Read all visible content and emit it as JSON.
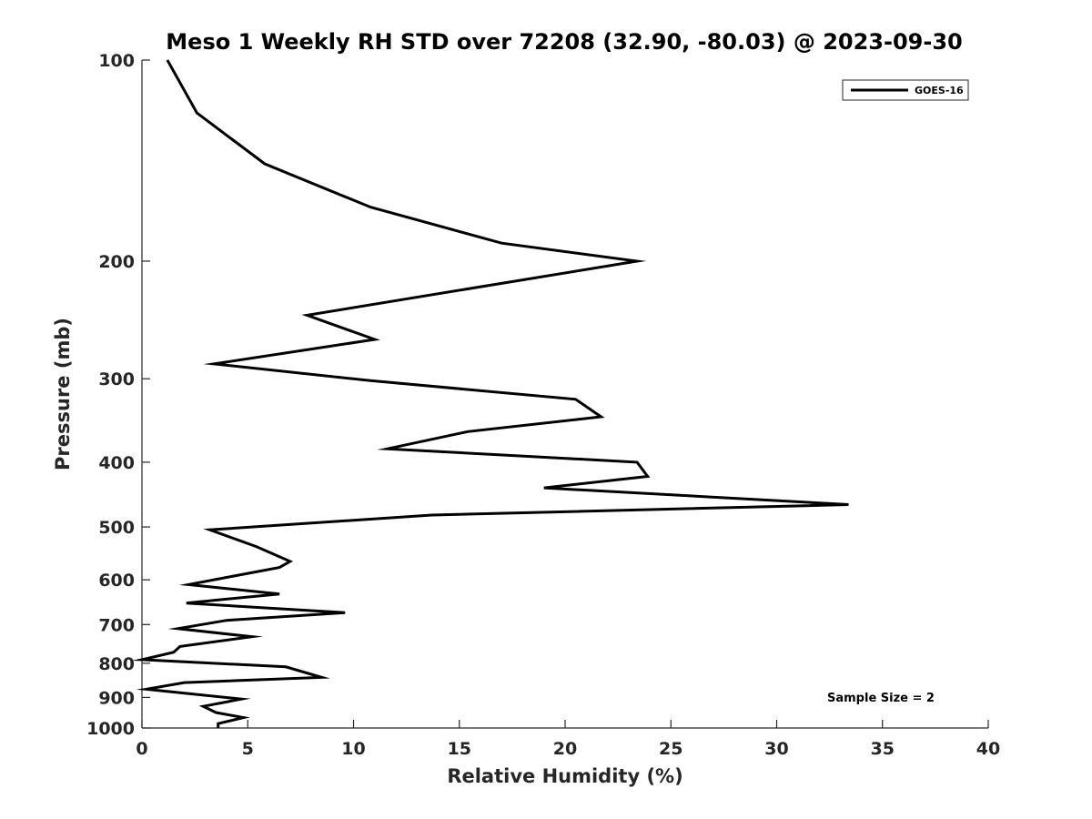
{
  "chart_data": {
    "type": "line",
    "title": "Meso 1 Weekly RH STD over 72208 (32.90, -80.03) @ 2023-09-30",
    "xlabel": "Relative Humidity (%)",
    "ylabel": "Pressure (mb)",
    "xlim": [
      0,
      40
    ],
    "ylim": [
      100,
      1000
    ],
    "y_scale": "log",
    "y_reversed": true,
    "x_ticks": [
      0,
      5,
      10,
      15,
      20,
      25,
      30,
      35,
      40
    ],
    "y_ticks": [
      100,
      200,
      300,
      400,
      500,
      600,
      700,
      800,
      900,
      1000
    ],
    "legend": {
      "location": "top-right",
      "entries": [
        "GOES-16"
      ]
    },
    "annotation": "Sample Size = 2",
    "series": [
      {
        "name": "GOES-16",
        "color": "#000000",
        "points": [
          [
            1.2,
            100
          ],
          [
            2.6,
            120
          ],
          [
            5.8,
            143
          ],
          [
            10.8,
            166
          ],
          [
            17.0,
            188
          ],
          [
            23.4,
            200
          ],
          [
            7.8,
            241
          ],
          [
            11.0,
            262
          ],
          [
            3.4,
            285
          ],
          [
            10.8,
            302
          ],
          [
            20.5,
            322
          ],
          [
            21.7,
            342
          ],
          [
            15.4,
            360
          ],
          [
            11.6,
            382
          ],
          [
            23.4,
            400
          ],
          [
            23.9,
            420
          ],
          [
            19.0,
            437
          ],
          [
            33.4,
            463
          ],
          [
            13.7,
            480
          ],
          [
            3.2,
            505
          ],
          [
            5.4,
            535
          ],
          [
            7.0,
            563
          ],
          [
            6.5,
            575
          ],
          [
            4.0,
            595
          ],
          [
            2.2,
            610
          ],
          [
            6.5,
            630
          ],
          [
            2.1,
            650
          ],
          [
            9.6,
            672
          ],
          [
            4.0,
            690
          ],
          [
            1.7,
            710
          ],
          [
            5.2,
            730
          ],
          [
            1.8,
            755
          ],
          [
            1.5,
            770
          ],
          [
            0.0,
            790
          ],
          [
            6.8,
            810
          ],
          [
            8.5,
            840
          ],
          [
            2.0,
            855
          ],
          [
            0.2,
            875
          ],
          [
            4.7,
            905
          ],
          [
            2.9,
            928
          ],
          [
            3.5,
            948
          ],
          [
            4.8,
            965
          ],
          [
            3.6,
            985
          ],
          [
            3.6,
            1000
          ]
        ]
      }
    ]
  }
}
